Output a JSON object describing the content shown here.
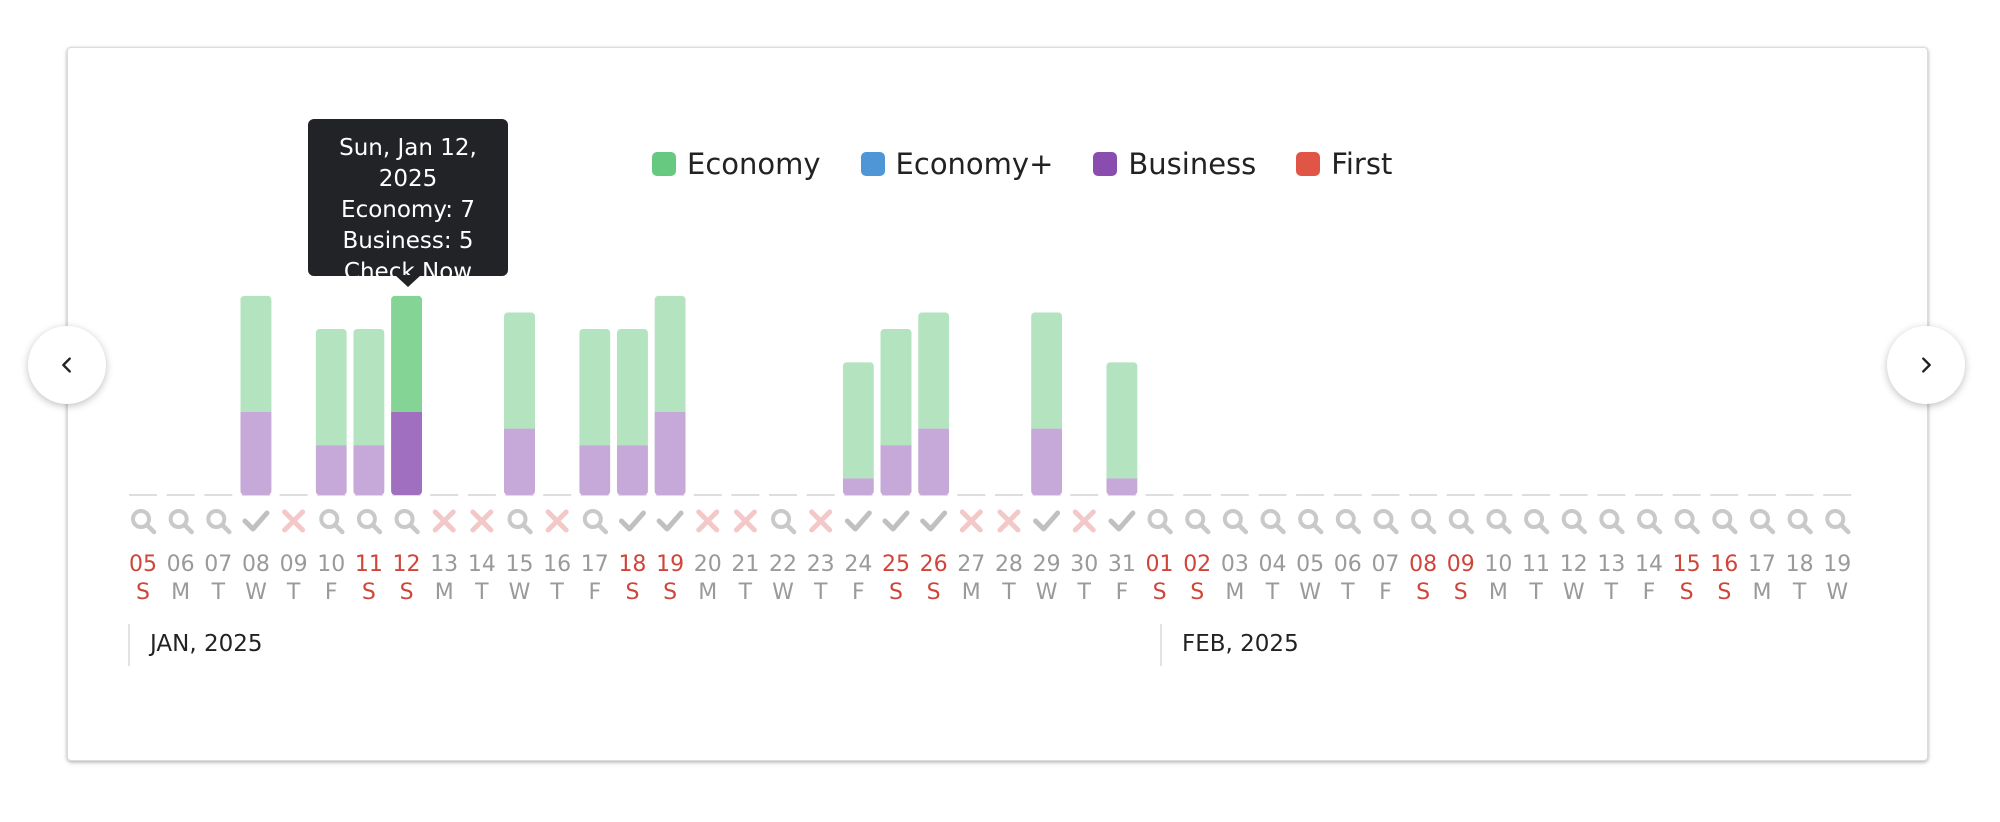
{
  "legend": [
    {
      "label": "Economy",
      "color": "#66c97f"
    },
    {
      "label": "Economy+",
      "color": "#4f96d6"
    },
    {
      "label": "Business",
      "color": "#8a4caf"
    },
    {
      "label": "First",
      "color": "#e05545"
    }
  ],
  "tooltip": {
    "date": "Sun, Jan 12, 2025",
    "economy": "Economy: 7",
    "business": "Business: 5",
    "action": "Check Now"
  },
  "months": [
    {
      "label": "JAN, 2025"
    },
    {
      "label": "FEB, 2025"
    }
  ],
  "icons": {
    "prev": "chevron-left-icon",
    "next": "chevron-right-icon"
  },
  "chart_data": {
    "type": "bar",
    "stacked": true,
    "ylim": [
      0,
      12
    ],
    "highlight_index": 7,
    "colors": {
      "economy": "#b3e4bf",
      "economy_active": "#84d496",
      "business": "#c6a8d9",
      "business_active": "#a06fc0",
      "weekend": "#d0453a",
      "weekday": "#9a9a9a"
    },
    "days": [
      {
        "d": "05",
        "w": "S",
        "weekend": true,
        "economy": 0,
        "business": 0,
        "status": "search"
      },
      {
        "d": "06",
        "w": "M",
        "weekend": false,
        "economy": 0,
        "business": 0,
        "status": "search"
      },
      {
        "d": "07",
        "w": "T",
        "weekend": false,
        "economy": 0,
        "business": 0,
        "status": "search"
      },
      {
        "d": "08",
        "w": "W",
        "weekend": false,
        "economy": 7,
        "business": 5,
        "status": "check"
      },
      {
        "d": "09",
        "w": "T",
        "weekend": false,
        "economy": 0,
        "business": 0,
        "status": "x"
      },
      {
        "d": "10",
        "w": "F",
        "weekend": false,
        "economy": 7,
        "business": 3,
        "status": "search"
      },
      {
        "d": "11",
        "w": "S",
        "weekend": true,
        "economy": 7,
        "business": 3,
        "status": "search"
      },
      {
        "d": "12",
        "w": "S",
        "weekend": true,
        "economy": 7,
        "business": 5,
        "status": "search"
      },
      {
        "d": "13",
        "w": "M",
        "weekend": false,
        "economy": 0,
        "business": 0,
        "status": "x"
      },
      {
        "d": "14",
        "w": "T",
        "weekend": false,
        "economy": 0,
        "business": 0,
        "status": "x"
      },
      {
        "d": "15",
        "w": "W",
        "weekend": false,
        "economy": 7,
        "business": 4,
        "status": "search"
      },
      {
        "d": "16",
        "w": "T",
        "weekend": false,
        "economy": 0,
        "business": 0,
        "status": "x"
      },
      {
        "d": "17",
        "w": "F",
        "weekend": false,
        "economy": 7,
        "business": 3,
        "status": "search"
      },
      {
        "d": "18",
        "w": "S",
        "weekend": true,
        "economy": 7,
        "business": 3,
        "status": "check"
      },
      {
        "d": "19",
        "w": "S",
        "weekend": true,
        "economy": 7,
        "business": 5,
        "status": "check"
      },
      {
        "d": "20",
        "w": "M",
        "weekend": false,
        "economy": 0,
        "business": 0,
        "status": "x"
      },
      {
        "d": "21",
        "w": "T",
        "weekend": false,
        "economy": 0,
        "business": 0,
        "status": "x"
      },
      {
        "d": "22",
        "w": "W",
        "weekend": false,
        "economy": 0,
        "business": 0,
        "status": "search"
      },
      {
        "d": "23",
        "w": "T",
        "weekend": false,
        "economy": 0,
        "business": 0,
        "status": "x"
      },
      {
        "d": "24",
        "w": "F",
        "weekend": false,
        "economy": 7,
        "business": 1,
        "status": "check"
      },
      {
        "d": "25",
        "w": "S",
        "weekend": true,
        "economy": 7,
        "business": 3,
        "status": "check"
      },
      {
        "d": "26",
        "w": "S",
        "weekend": true,
        "economy": 7,
        "business": 4,
        "status": "check"
      },
      {
        "d": "27",
        "w": "M",
        "weekend": false,
        "economy": 0,
        "business": 0,
        "status": "x"
      },
      {
        "d": "28",
        "w": "T",
        "weekend": false,
        "economy": 0,
        "business": 0,
        "status": "x"
      },
      {
        "d": "29",
        "w": "W",
        "weekend": false,
        "economy": 7,
        "business": 4,
        "status": "check"
      },
      {
        "d": "30",
        "w": "T",
        "weekend": false,
        "economy": 0,
        "business": 0,
        "status": "x"
      },
      {
        "d": "31",
        "w": "F",
        "weekend": false,
        "economy": 7,
        "business": 1,
        "status": "check"
      },
      {
        "d": "01",
        "w": "S",
        "weekend": true,
        "economy": 0,
        "business": 0,
        "status": "search"
      },
      {
        "d": "02",
        "w": "S",
        "weekend": true,
        "economy": 0,
        "business": 0,
        "status": "search"
      },
      {
        "d": "03",
        "w": "M",
        "weekend": false,
        "economy": 0,
        "business": 0,
        "status": "search"
      },
      {
        "d": "04",
        "w": "T",
        "weekend": false,
        "economy": 0,
        "business": 0,
        "status": "search"
      },
      {
        "d": "05",
        "w": "W",
        "weekend": false,
        "economy": 0,
        "business": 0,
        "status": "search"
      },
      {
        "d": "06",
        "w": "T",
        "weekend": false,
        "economy": 0,
        "business": 0,
        "status": "search"
      },
      {
        "d": "07",
        "w": "F",
        "weekend": false,
        "economy": 0,
        "business": 0,
        "status": "search"
      },
      {
        "d": "08",
        "w": "S",
        "weekend": true,
        "economy": 0,
        "business": 0,
        "status": "search"
      },
      {
        "d": "09",
        "w": "S",
        "weekend": true,
        "economy": 0,
        "business": 0,
        "status": "search"
      },
      {
        "d": "10",
        "w": "M",
        "weekend": false,
        "economy": 0,
        "business": 0,
        "status": "search"
      },
      {
        "d": "11",
        "w": "T",
        "weekend": false,
        "economy": 0,
        "business": 0,
        "status": "search"
      },
      {
        "d": "12",
        "w": "W",
        "weekend": false,
        "economy": 0,
        "business": 0,
        "status": "search"
      },
      {
        "d": "13",
        "w": "T",
        "weekend": false,
        "economy": 0,
        "business": 0,
        "status": "search"
      },
      {
        "d": "14",
        "w": "F",
        "weekend": false,
        "economy": 0,
        "business": 0,
        "status": "search"
      },
      {
        "d": "15",
        "w": "S",
        "weekend": true,
        "economy": 0,
        "business": 0,
        "status": "search"
      },
      {
        "d": "16",
        "w": "S",
        "weekend": true,
        "economy": 0,
        "business": 0,
        "status": "search"
      },
      {
        "d": "17",
        "w": "M",
        "weekend": false,
        "economy": 0,
        "business": 0,
        "status": "search"
      },
      {
        "d": "18",
        "w": "T",
        "weekend": false,
        "economy": 0,
        "business": 0,
        "status": "search"
      },
      {
        "d": "19",
        "w": "W",
        "weekend": false,
        "economy": 0,
        "business": 0,
        "status": "search"
      }
    ]
  }
}
